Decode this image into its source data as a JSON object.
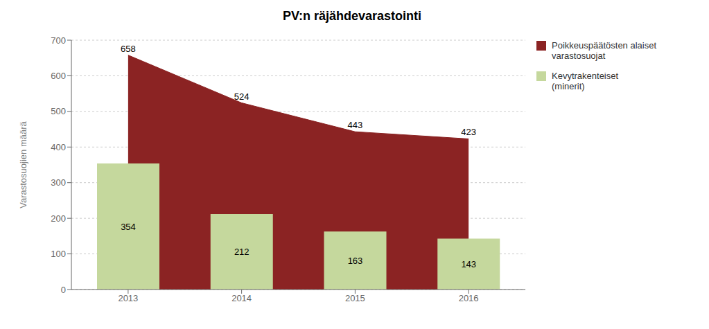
{
  "chart_data": {
    "type": "bar",
    "title": "PV:n räjähdevarastointi",
    "ylabel": "Varastosuojien määrä",
    "categories": [
      "2013",
      "2014",
      "2015",
      "2016"
    ],
    "series": [
      {
        "name": "Poikkeuspäätösten alaiset\nvarastosuojat",
        "type": "area",
        "color": "#8B2323",
        "values": [
          658,
          524,
          443,
          423
        ]
      },
      {
        "name": "Kevytrakenteiset\n(minerit)",
        "type": "bar",
        "color": "#C5D89D",
        "values": [
          354,
          212,
          163,
          143
        ]
      }
    ],
    "ylim": [
      0,
      700
    ],
    "yticks": [
      0,
      100,
      200,
      300,
      400,
      500,
      600,
      700
    ],
    "grid": true,
    "legend": "right",
    "data_labels": true
  }
}
